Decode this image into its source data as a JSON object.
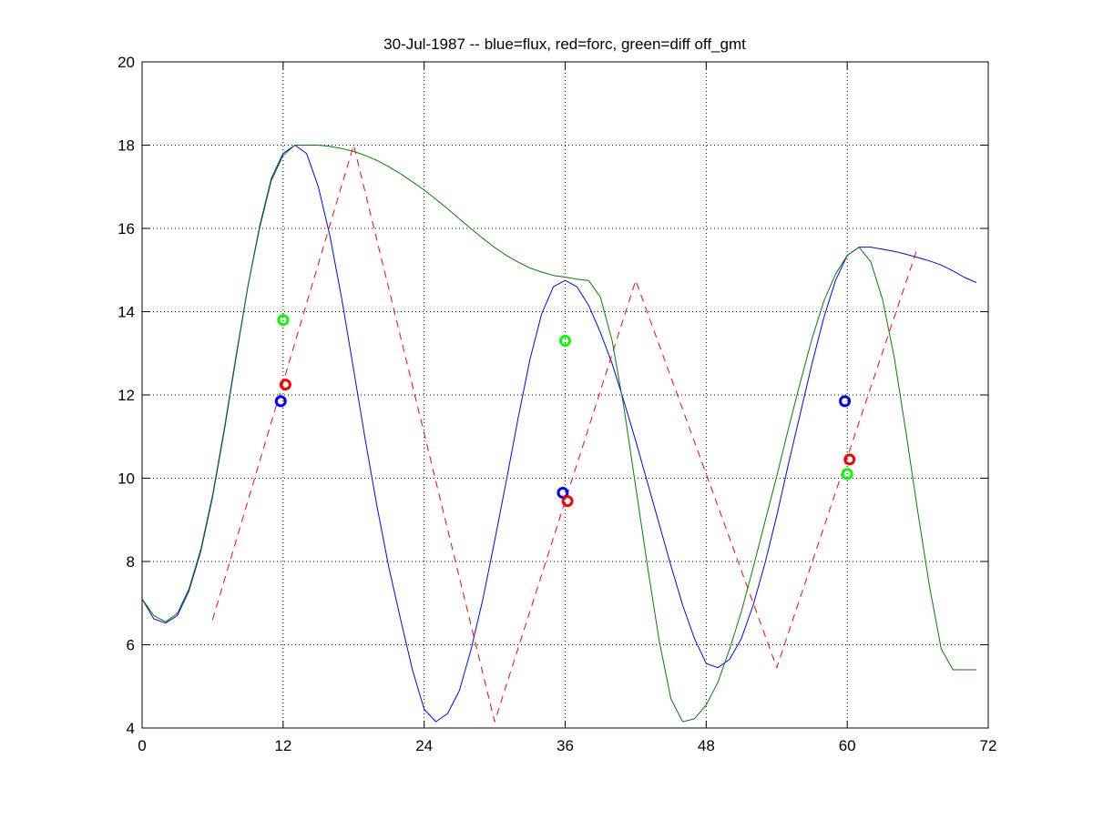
{
  "chart_data": {
    "type": "line",
    "title": "30-Jul-1987 -- blue=flux, red=forc, green=diff off_gmt",
    "xlabel": "",
    "ylabel": "",
    "xlim": [
      0,
      72
    ],
    "ylim": [
      4,
      20
    ],
    "xticks": [
      0,
      12,
      24,
      36,
      48,
      60,
      72
    ],
    "yticks": [
      4,
      6,
      8,
      10,
      12,
      14,
      16,
      18,
      20
    ],
    "xtick_labels": [
      "0",
      "12",
      "24",
      "36",
      "48",
      "60",
      "72"
    ],
    "ytick_labels": [
      "4",
      "6",
      "8",
      "10",
      "12",
      "14",
      "16",
      "18",
      "20"
    ],
    "grid": true,
    "grid_style": "dotted",
    "legend": "none",
    "colors": {
      "flux": "#0000ff",
      "forc": "#ff0000",
      "diff": "#007f00",
      "diff_marker": "#00ff00",
      "axes": "#000000",
      "grid": "#000000"
    },
    "series": [
      {
        "name": "flux",
        "color": "#0000ff",
        "style": "solid",
        "x": [
          0,
          1,
          2,
          3,
          4,
          5,
          6,
          7,
          8,
          9,
          10,
          11,
          12,
          13,
          14,
          15,
          16,
          17,
          18,
          19,
          20,
          21,
          22,
          23,
          24,
          25,
          26,
          27,
          28,
          29,
          30,
          31,
          32,
          33,
          34,
          35,
          36,
          37,
          38,
          39,
          40,
          41,
          42,
          43,
          44,
          45,
          46,
          47,
          48,
          49,
          50,
          51,
          52,
          53,
          54,
          55,
          56,
          57,
          58,
          59,
          60,
          61,
          62,
          63,
          64,
          65,
          66,
          67,
          68,
          69,
          70,
          71
        ],
        "y": [
          7.1,
          6.62,
          6.52,
          6.7,
          7.3,
          8.25,
          9.55,
          11.15,
          12.9,
          14.6,
          16.05,
          17.2,
          17.8,
          18.0,
          17.8,
          17.0,
          15.8,
          14.3,
          12.6,
          10.9,
          9.3,
          7.85,
          6.6,
          5.4,
          4.45,
          4.15,
          4.35,
          4.9,
          5.9,
          7.1,
          8.5,
          9.95,
          11.45,
          12.85,
          13.95,
          14.6,
          14.75,
          14.6,
          14.15,
          13.5,
          12.75,
          11.85,
          10.9,
          9.9,
          8.9,
          7.9,
          6.95,
          6.15,
          5.55,
          5.45,
          5.65,
          6.15,
          6.95,
          7.95,
          9.1,
          10.35,
          11.55,
          12.75,
          13.85,
          14.75,
          15.35,
          15.55,
          15.55,
          15.5,
          15.45,
          15.38,
          15.3,
          15.22,
          15.12,
          14.98,
          14.82,
          14.7
        ]
      },
      {
        "name": "forc",
        "color": "#ff0000",
        "style": "dashed",
        "x": [
          6,
          18,
          30,
          42,
          54,
          66
        ],
        "y": [
          6.6,
          18.0,
          4.15,
          14.75,
          5.45,
          15.55
        ]
      },
      {
        "name": "diff",
        "color": "#007f00",
        "style": "solid",
        "x": [
          0,
          1,
          2,
          3,
          4,
          5,
          6,
          7,
          8,
          9,
          10,
          11,
          12,
          13,
          14,
          15,
          16,
          17,
          18,
          19,
          20,
          21,
          22,
          23,
          24,
          25,
          26,
          27,
          28,
          29,
          30,
          31,
          32,
          33,
          34,
          35,
          36,
          37,
          38,
          39,
          40,
          41,
          42,
          43,
          44,
          45,
          46,
          47,
          48,
          49,
          50,
          51,
          52,
          53,
          54,
          55,
          56,
          57,
          58,
          59,
          60,
          61,
          62,
          63,
          64,
          65,
          66,
          67,
          68,
          69,
          70,
          71
        ],
        "y": [
          7.1,
          6.7,
          6.55,
          6.75,
          7.35,
          8.3,
          9.6,
          11.2,
          12.95,
          14.6,
          16.0,
          17.15,
          17.75,
          18.0,
          18.0,
          18.0,
          17.97,
          17.92,
          17.85,
          17.75,
          17.63,
          17.48,
          17.31,
          17.12,
          16.92,
          16.7,
          16.47,
          16.23,
          15.99,
          15.76,
          15.54,
          15.35,
          15.19,
          15.05,
          14.95,
          14.87,
          14.83,
          14.78,
          14.75,
          14.35,
          13.3,
          11.7,
          9.8,
          7.9,
          6.1,
          4.7,
          4.15,
          4.22,
          4.55,
          5.1,
          5.9,
          6.8,
          7.85,
          8.95,
          10.05,
          11.2,
          12.3,
          13.35,
          14.25,
          14.9,
          15.35,
          15.55,
          15.2,
          14.3,
          12.9,
          11.1,
          9.2,
          7.4,
          5.9,
          5.4,
          5.4,
          5.4
        ]
      }
    ],
    "markers": [
      {
        "series": "flux",
        "color": "#0000ff",
        "points": [
          {
            "x": 11.8,
            "y": 11.85
          },
          {
            "x": 35.8,
            "y": 9.65
          },
          {
            "x": 59.8,
            "y": 11.85
          }
        ]
      },
      {
        "series": "forc",
        "color": "#ff0000",
        "points": [
          {
            "x": 12.2,
            "y": 12.25
          },
          {
            "x": 36.2,
            "y": 9.45
          },
          {
            "x": 60.2,
            "y": 10.45
          }
        ]
      },
      {
        "series": "diff",
        "color": "#00ff00",
        "points": [
          {
            "x": 12.0,
            "y": 13.8
          },
          {
            "x": 36.0,
            "y": 13.3
          },
          {
            "x": 60.0,
            "y": 10.1
          }
        ]
      }
    ]
  }
}
